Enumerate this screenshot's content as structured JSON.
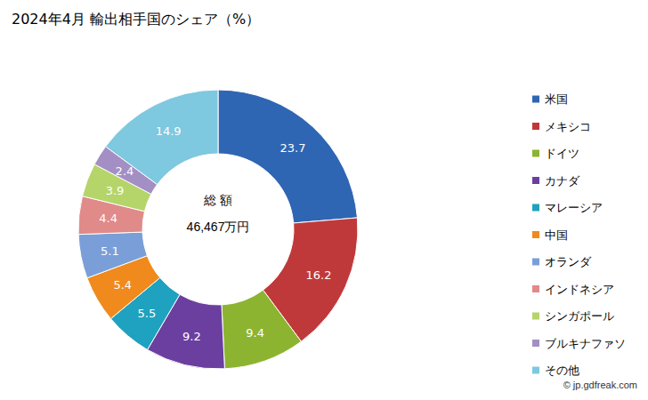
{
  "chart_data": {
    "type": "pie",
    "title": "2024年4月 輸出相手国のシェア（%）",
    "categories": [
      "米国",
      "メキシコ",
      "ドイツ",
      "カナダ",
      "マレーシア",
      "中国",
      "オランダ",
      "インドネシア",
      "シンガポール",
      "ブルキナファソ",
      "その他"
    ],
    "values": [
      23.7,
      16.2,
      9.4,
      9.2,
      5.5,
      5.4,
      5.1,
      4.4,
      3.9,
      2.4,
      14.9
    ],
    "colors": [
      "#2f66b3",
      "#c0393a",
      "#8db431",
      "#6b3fa0",
      "#1fa2bf",
      "#f08a1c",
      "#7a9fd8",
      "#e08a8a",
      "#b5d56a",
      "#a48fc4",
      "#7ec8e0"
    ],
    "data_labels": true,
    "legend": "right",
    "annotations": [
      "総 額",
      "46,467万円",
      "© jp.gdfreak.com"
    ]
  }
}
